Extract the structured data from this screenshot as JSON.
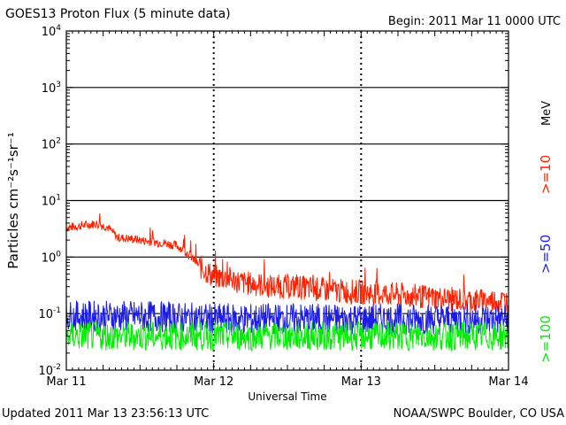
{
  "header": {
    "title": "GOES13 Proton Flux (5 minute data)",
    "begin": "Begin: 2011 Mar 11 0000 UTC"
  },
  "footer": {
    "updated": "Updated 2011 Mar 13 23:56:13 UTC",
    "credit": "NOAA/SWPC Boulder, CO USA"
  },
  "chart_data": {
    "type": "line",
    "title": "GOES13 Proton Flux (5 minute data)",
    "xlabel": "Universal Time",
    "ylabel": "Particles cm⁻²s⁻¹sr⁻¹",
    "x_unit_label": "MeV",
    "y_scale": "log",
    "ylim": [
      0.01,
      10000
    ],
    "xlim_days": [
      0,
      3
    ],
    "x_ticks": [
      {
        "day": 0,
        "label": "Mar 11"
      },
      {
        "day": 1,
        "label": "Mar 12"
      },
      {
        "day": 2,
        "label": "Mar 13"
      },
      {
        "day": 3,
        "label": "Mar 14"
      }
    ],
    "y_ticks": [
      {
        "value": 0.01,
        "base": "10",
        "exp": "-2"
      },
      {
        "value": 0.1,
        "base": "10",
        "exp": "-1"
      },
      {
        "value": 1,
        "base": "10",
        "exp": "0"
      },
      {
        "value": 10,
        "base": "10",
        "exp": "1"
      },
      {
        "value": 100,
        "base": "10",
        "exp": "2"
      },
      {
        "value": 1000,
        "base": "10",
        "exp": "3"
      },
      {
        "value": 10000,
        "base": "10",
        "exp": "4"
      }
    ],
    "thresholds": [
      1,
      10,
      100,
      1000
    ],
    "series": [
      {
        "name": ">=10",
        "color": "#ff2000",
        "points": [
          [
            0.0,
            3.3
          ],
          [
            0.1,
            3.6
          ],
          [
            0.2,
            3.9
          ],
          [
            0.28,
            3.4
          ],
          [
            0.35,
            2.2
          ],
          [
            0.45,
            2.1
          ],
          [
            0.55,
            1.9
          ],
          [
            0.65,
            1.8
          ],
          [
            0.75,
            1.6
          ],
          [
            0.82,
            1.2
          ],
          [
            0.9,
            0.7
          ],
          [
            1.0,
            0.45
          ],
          [
            1.1,
            0.42
          ],
          [
            1.2,
            0.35
          ],
          [
            1.3,
            0.33
          ],
          [
            1.4,
            0.3
          ],
          [
            1.55,
            0.3
          ],
          [
            1.7,
            0.27
          ],
          [
            1.85,
            0.25
          ],
          [
            2.0,
            0.24
          ],
          [
            2.2,
            0.22
          ],
          [
            2.4,
            0.2
          ],
          [
            2.6,
            0.18
          ],
          [
            2.8,
            0.17
          ],
          [
            3.0,
            0.17
          ]
        ]
      },
      {
        "name": ">=50",
        "color": "#1c1ce8",
        "points": [
          [
            0.0,
            0.09
          ],
          [
            0.5,
            0.09
          ],
          [
            1.0,
            0.08
          ],
          [
            1.5,
            0.08
          ],
          [
            2.0,
            0.08
          ],
          [
            2.5,
            0.08
          ],
          [
            3.0,
            0.08
          ]
        ]
      },
      {
        "name": ">=100",
        "color": "#00ee00",
        "points": [
          [
            0.0,
            0.04
          ],
          [
            0.5,
            0.04
          ],
          [
            1.0,
            0.04
          ],
          [
            1.5,
            0.04
          ],
          [
            2.0,
            0.04
          ],
          [
            2.5,
            0.04
          ],
          [
            3.0,
            0.04
          ]
        ]
      }
    ]
  }
}
